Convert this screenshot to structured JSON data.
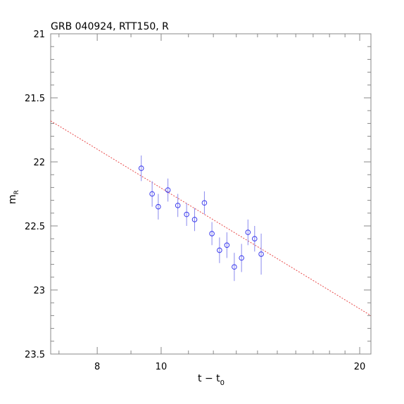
{
  "chart_data": {
    "type": "scatter",
    "title": "GRB 040924, RTT150, R",
    "xlabel": {
      "main": "t − t",
      "sub": "0"
    },
    "ylabel": {
      "main": "m",
      "sub": "R"
    },
    "x_scale": "log",
    "xlim": [
      6.8,
      20.8
    ],
    "ylim": [
      21.0,
      23.5
    ],
    "y_inverted": true,
    "x_major_ticks": [
      8,
      10,
      20
    ],
    "x_major_tick_labels": [
      "8",
      "10",
      "20"
    ],
    "x_minor_ticks": [
      7,
      9,
      11,
      12,
      13,
      14,
      15,
      16,
      17,
      18,
      19
    ],
    "y_major_ticks": [
      21,
      21.5,
      22,
      22.5,
      23,
      23.5
    ],
    "y_tick_labels": [
      "21",
      "21.5",
      "22",
      "22.5",
      "23",
      "23.5"
    ],
    "y_minor_step": 0.1,
    "grid": false,
    "points": [
      {
        "t": 9.33,
        "m": 22.05,
        "err": 0.1
      },
      {
        "t": 9.69,
        "m": 22.25,
        "err": 0.1
      },
      {
        "t": 9.9,
        "m": 22.35,
        "err": 0.1
      },
      {
        "t": 10.24,
        "m": 22.22,
        "err": 0.09
      },
      {
        "t": 10.6,
        "m": 22.34,
        "err": 0.09
      },
      {
        "t": 10.93,
        "m": 22.41,
        "err": 0.09
      },
      {
        "t": 11.24,
        "m": 22.45,
        "err": 0.09
      },
      {
        "t": 11.63,
        "m": 22.32,
        "err": 0.09
      },
      {
        "t": 11.94,
        "m": 22.56,
        "err": 0.09
      },
      {
        "t": 12.26,
        "m": 22.69,
        "err": 0.1
      },
      {
        "t": 12.58,
        "m": 22.65,
        "err": 0.1
      },
      {
        "t": 12.91,
        "m": 22.82,
        "err": 0.11
      },
      {
        "t": 13.24,
        "m": 22.75,
        "err": 0.11
      },
      {
        "t": 13.54,
        "m": 22.55,
        "err": 0.1
      },
      {
        "t": 13.86,
        "m": 22.6,
        "err": 0.1
      },
      {
        "t": 14.18,
        "m": 22.72,
        "err": 0.16
      }
    ],
    "fit_line": {
      "style": "dotted",
      "from": {
        "t": 6.8,
        "m": 21.68
      },
      "to": {
        "t": 20.8,
        "m": 23.2
      }
    },
    "colors": {
      "points": "#3a3aee",
      "errorbars": "#8a8aee",
      "fit": "#e84a4a",
      "axes": "#888888"
    }
  }
}
